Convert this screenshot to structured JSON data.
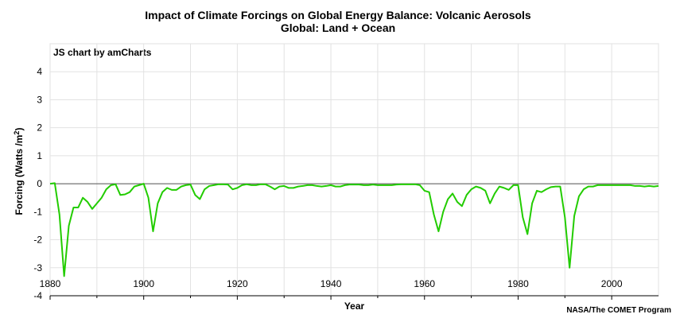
{
  "chart_data": {
    "type": "line",
    "title": "Impact of Climate Forcings on Global Energy Balance: Volcanic Aerosols",
    "subtitle": "Global: Land + Ocean",
    "credit": "JS chart by amCharts",
    "source": "NASA/The COMET Program",
    "xlabel": "Year",
    "ylabel": "Forcing (Watts /m",
    "ylabel_sup": "2",
    "ylabel_end": ")",
    "xlim": [
      1880,
      2010
    ],
    "ylim": [
      -4,
      5
    ],
    "x_ticks": [
      "1880",
      "1900",
      "1920",
      "1940",
      "1960",
      "1980",
      "2000"
    ],
    "y_ticks": [
      "4",
      "3",
      "2",
      "1",
      "0",
      "-1",
      "-2",
      "-3",
      "-4"
    ],
    "grid": true,
    "line_color": "#22cc00",
    "series": [
      {
        "x": [
          1880,
          1881,
          1882,
          1883,
          1884,
          1885,
          1886,
          1887,
          1888,
          1889,
          1890,
          1891,
          1892,
          1893,
          1894,
          1895,
          1896,
          1897,
          1898,
          1899,
          1900,
          1901,
          1902,
          1903,
          1904,
          1905,
          1906,
          1907,
          1908,
          1909,
          1910,
          1911,
          1912,
          1913,
          1914,
          1915,
          1916,
          1917,
          1918,
          1919,
          1920,
          1921,
          1922,
          1923,
          1924,
          1925,
          1926,
          1927,
          1928,
          1929,
          1930,
          1931,
          1932,
          1933,
          1934,
          1935,
          1936,
          1937,
          1938,
          1939,
          1940,
          1941,
          1942,
          1943,
          1944,
          1945,
          1946,
          1947,
          1948,
          1949,
          1950,
          1951,
          1952,
          1953,
          1954,
          1955,
          1956,
          1957,
          1958,
          1959,
          1960,
          1961,
          1962,
          1963,
          1964,
          1965,
          1966,
          1967,
          1968,
          1969,
          1970,
          1971,
          1972,
          1973,
          1974,
          1975,
          1976,
          1977,
          1978,
          1979,
          1980,
          1981,
          1982,
          1983,
          1984,
          1985,
          1986,
          1987,
          1988,
          1989,
          1990,
          1991,
          1992,
          1993,
          1994,
          1995,
          1996,
          1997,
          1998,
          1999,
          2000,
          2001,
          2002,
          2003,
          2004,
          2005,
          2006,
          2007,
          2008,
          2009,
          2010
        ],
        "values": [
          0,
          0.02,
          -1.1,
          -3.3,
          -1.5,
          -0.85,
          -0.85,
          -0.5,
          -0.65,
          -0.9,
          -0.7,
          -0.5,
          -0.2,
          -0.05,
          -0.02,
          -0.4,
          -0.38,
          -0.3,
          -0.1,
          -0.05,
          0,
          -0.5,
          -1.7,
          -0.7,
          -0.3,
          -0.15,
          -0.22,
          -0.22,
          -0.1,
          -0.05,
          -0.03,
          -0.4,
          -0.55,
          -0.2,
          -0.08,
          -0.05,
          -0.02,
          -0.02,
          -0.03,
          -0.2,
          -0.15,
          -0.05,
          -0.02,
          -0.05,
          -0.05,
          -0.02,
          -0.02,
          -0.1,
          -0.2,
          -0.1,
          -0.08,
          -0.15,
          -0.15,
          -0.1,
          -0.08,
          -0.05,
          -0.05,
          -0.08,
          -0.1,
          -0.08,
          -0.05,
          -0.1,
          -0.1,
          -0.05,
          -0.03,
          -0.03,
          -0.03,
          -0.05,
          -0.05,
          -0.03,
          -0.05,
          -0.05,
          -0.05,
          -0.05,
          -0.03,
          -0.02,
          -0.02,
          -0.02,
          -0.02,
          -0.05,
          -0.25,
          -0.3,
          -1.1,
          -1.7,
          -1.0,
          -0.55,
          -0.35,
          -0.65,
          -0.8,
          -0.4,
          -0.2,
          -0.1,
          -0.15,
          -0.25,
          -0.7,
          -0.35,
          -0.1,
          -0.15,
          -0.22,
          -0.05,
          -0.05,
          -1.2,
          -1.8,
          -0.7,
          -0.25,
          -0.3,
          -0.2,
          -0.12,
          -0.1,
          -0.1,
          -1.2,
          -3.0,
          -1.15,
          -0.45,
          -0.2,
          -0.1,
          -0.1,
          -0.05,
          -0.05,
          -0.05,
          -0.05,
          -0.05,
          -0.05,
          -0.05,
          -0.05,
          -0.08,
          -0.08,
          -0.1,
          -0.08,
          -0.1,
          -0.08
        ]
      }
    ]
  }
}
